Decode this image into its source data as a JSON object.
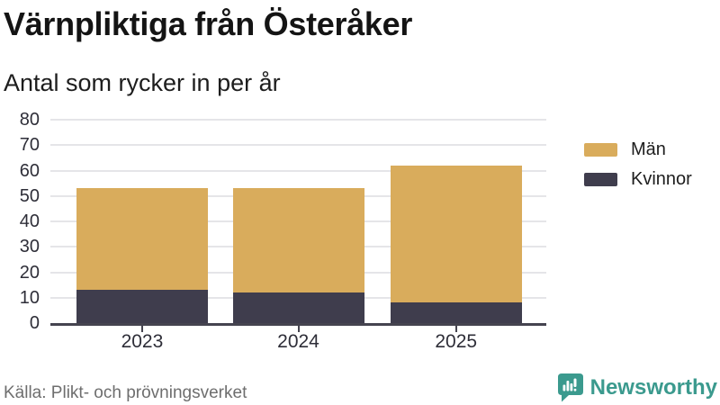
{
  "chart_data": {
    "type": "bar",
    "stacked": true,
    "title": "Värnpliktiga från Österåker",
    "subtitle": "Antal som rycker in per år",
    "categories": [
      "2023",
      "2024",
      "2025"
    ],
    "series": [
      {
        "name": "Män",
        "color": "#d9ac5c",
        "values": [
          40,
          41,
          54
        ]
      },
      {
        "name": "Kvinnor",
        "color": "#3f3d4d",
        "values": [
          13,
          12,
          8
        ]
      }
    ],
    "totals": [
      53,
      53,
      62
    ],
    "ylim": [
      0,
      80
    ],
    "yticks": [
      0,
      10,
      20,
      30,
      40,
      50,
      60,
      70,
      80
    ],
    "xlabel": "",
    "ylabel": "",
    "grid": true,
    "grid_color": "#e5e5e8",
    "axis_color": "#45444f",
    "tick_label_color": "#2e2e38",
    "legend_position": "right"
  },
  "source": {
    "text": "Källa: Plikt- och prövningsverket"
  },
  "brand": {
    "name": "Newsworthy",
    "color": "#3b9a8e"
  }
}
